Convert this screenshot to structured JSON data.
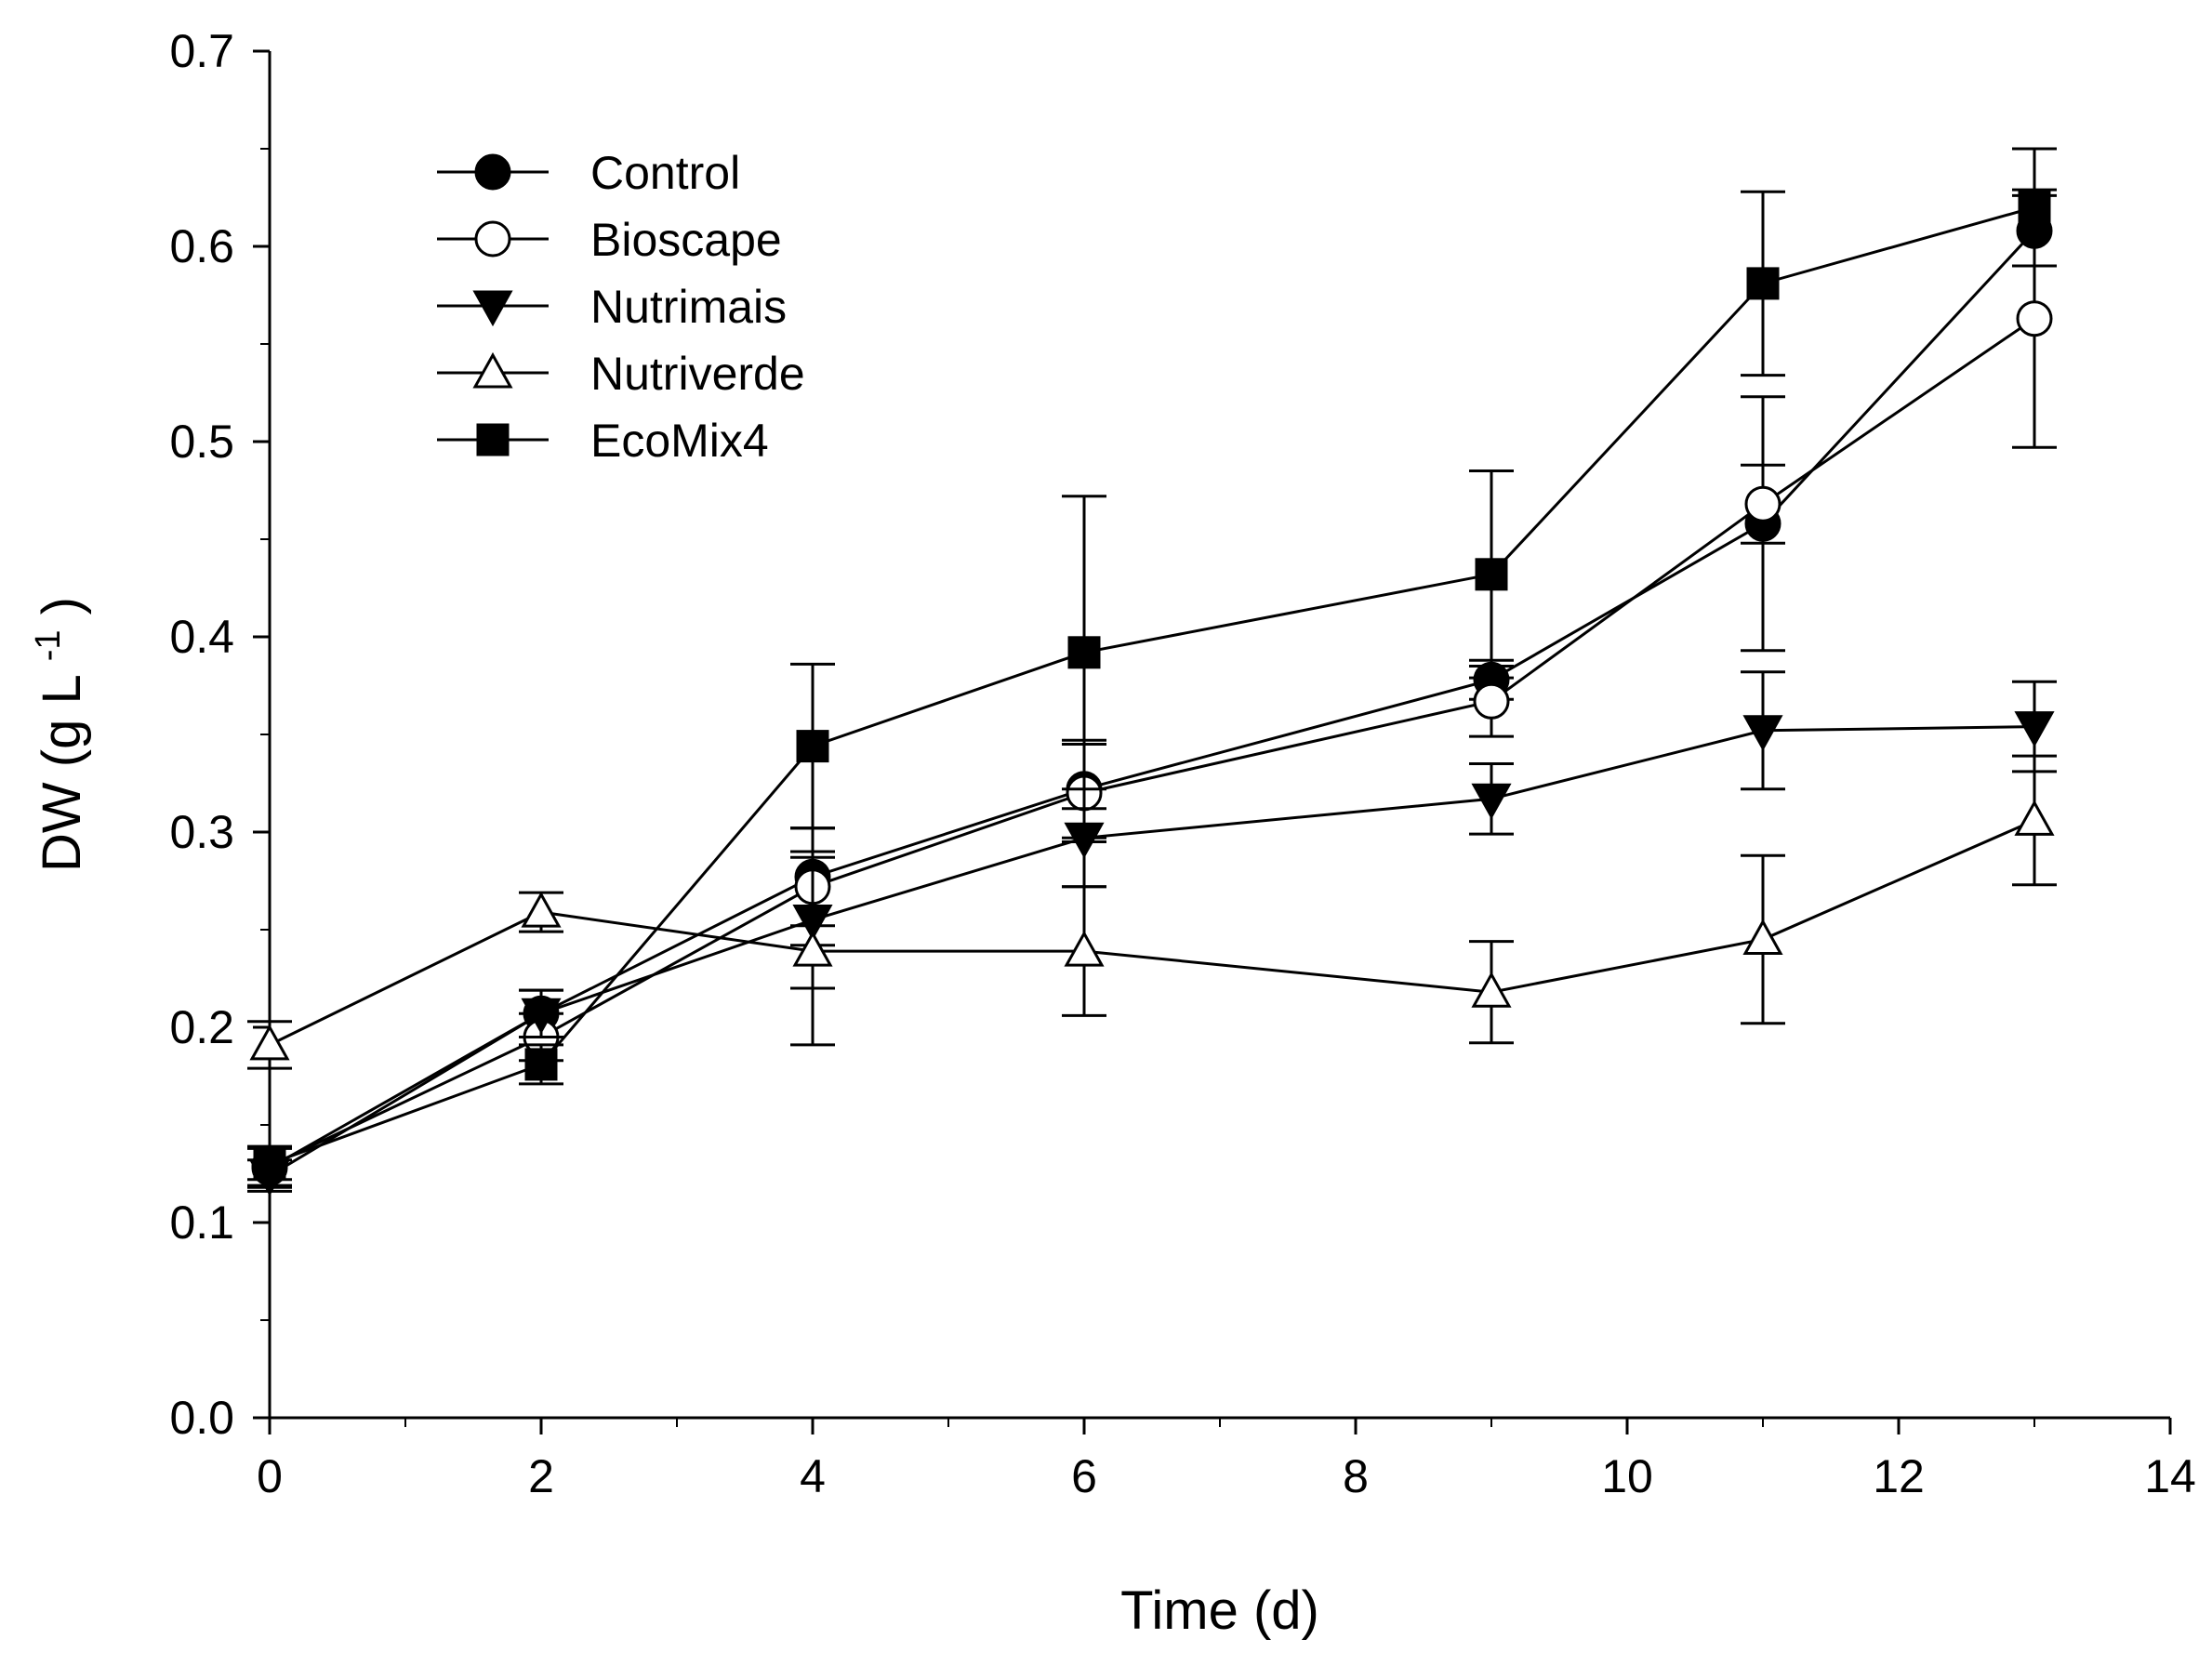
{
  "chart_data": {
    "type": "line",
    "title": "",
    "xlabel": "Time (d)",
    "ylabel_main": "DW (g L",
    "ylabel_sup": "-1",
    "ylabel_close": ")",
    "xlim": [
      0,
      14
    ],
    "ylim": [
      0.0,
      0.7
    ],
    "x_ticks": [
      0,
      2,
      4,
      6,
      8,
      10,
      12,
      14
    ],
    "x_tick_labels": [
      "0",
      "2",
      "4",
      "6",
      "8",
      "10",
      "12",
      "14"
    ],
    "y_ticks": [
      0.0,
      0.1,
      0.2,
      0.3,
      0.4,
      0.5,
      0.6,
      0.7
    ],
    "y_tick_labels": [
      "0.0",
      "0.1",
      "0.2",
      "0.3",
      "0.4",
      "0.5",
      "0.6",
      "0.7"
    ],
    "grid": false,
    "legend_position": "top-left",
    "x": [
      0,
      2,
      4,
      6,
      9,
      11,
      13
    ],
    "series": [
      {
        "name": "Control",
        "marker": "circle",
        "filled": true,
        "values": [
          0.128,
          0.207,
          0.277,
          0.322,
          0.378,
          0.458,
          0.608
        ],
        "errors": [
          0.01,
          0.012,
          0.025,
          0.025,
          0.01,
          0.065,
          0.018
        ]
      },
      {
        "name": "Bioscape",
        "marker": "circle",
        "filled": false,
        "values": [
          0.129,
          0.195,
          0.272,
          0.32,
          0.367,
          0.468,
          0.563
        ],
        "errors": [
          0.01,
          0.012,
          0.03,
          0.025,
          0.018,
          0.02,
          0.066
        ]
      },
      {
        "name": "Nutrimais",
        "marker": "triangle-down",
        "filled": true,
        "values": [
          0.124,
          0.207,
          0.255,
          0.297,
          0.317,
          0.352,
          0.354
        ],
        "errors": [
          0.008,
          0.012,
          0.035,
          0.025,
          0.018,
          0.03,
          0.023
        ]
      },
      {
        "name": "Nutriverde",
        "marker": "triangle-up",
        "filled": false,
        "values": [
          0.191,
          0.259,
          0.239,
          0.239,
          0.218,
          0.245,
          0.306
        ],
        "errors": [
          0.012,
          0.01,
          0.048,
          0.033,
          0.026,
          0.043,
          0.033
        ]
      },
      {
        "name": "EcoMix4",
        "marker": "square",
        "filled": true,
        "values": [
          0.13,
          0.181,
          0.344,
          0.392,
          0.432,
          0.581,
          0.62
        ],
        "errors": [
          0.008,
          0.01,
          0.042,
          0.08,
          0.053,
          0.047,
          0.03
        ]
      }
    ]
  }
}
